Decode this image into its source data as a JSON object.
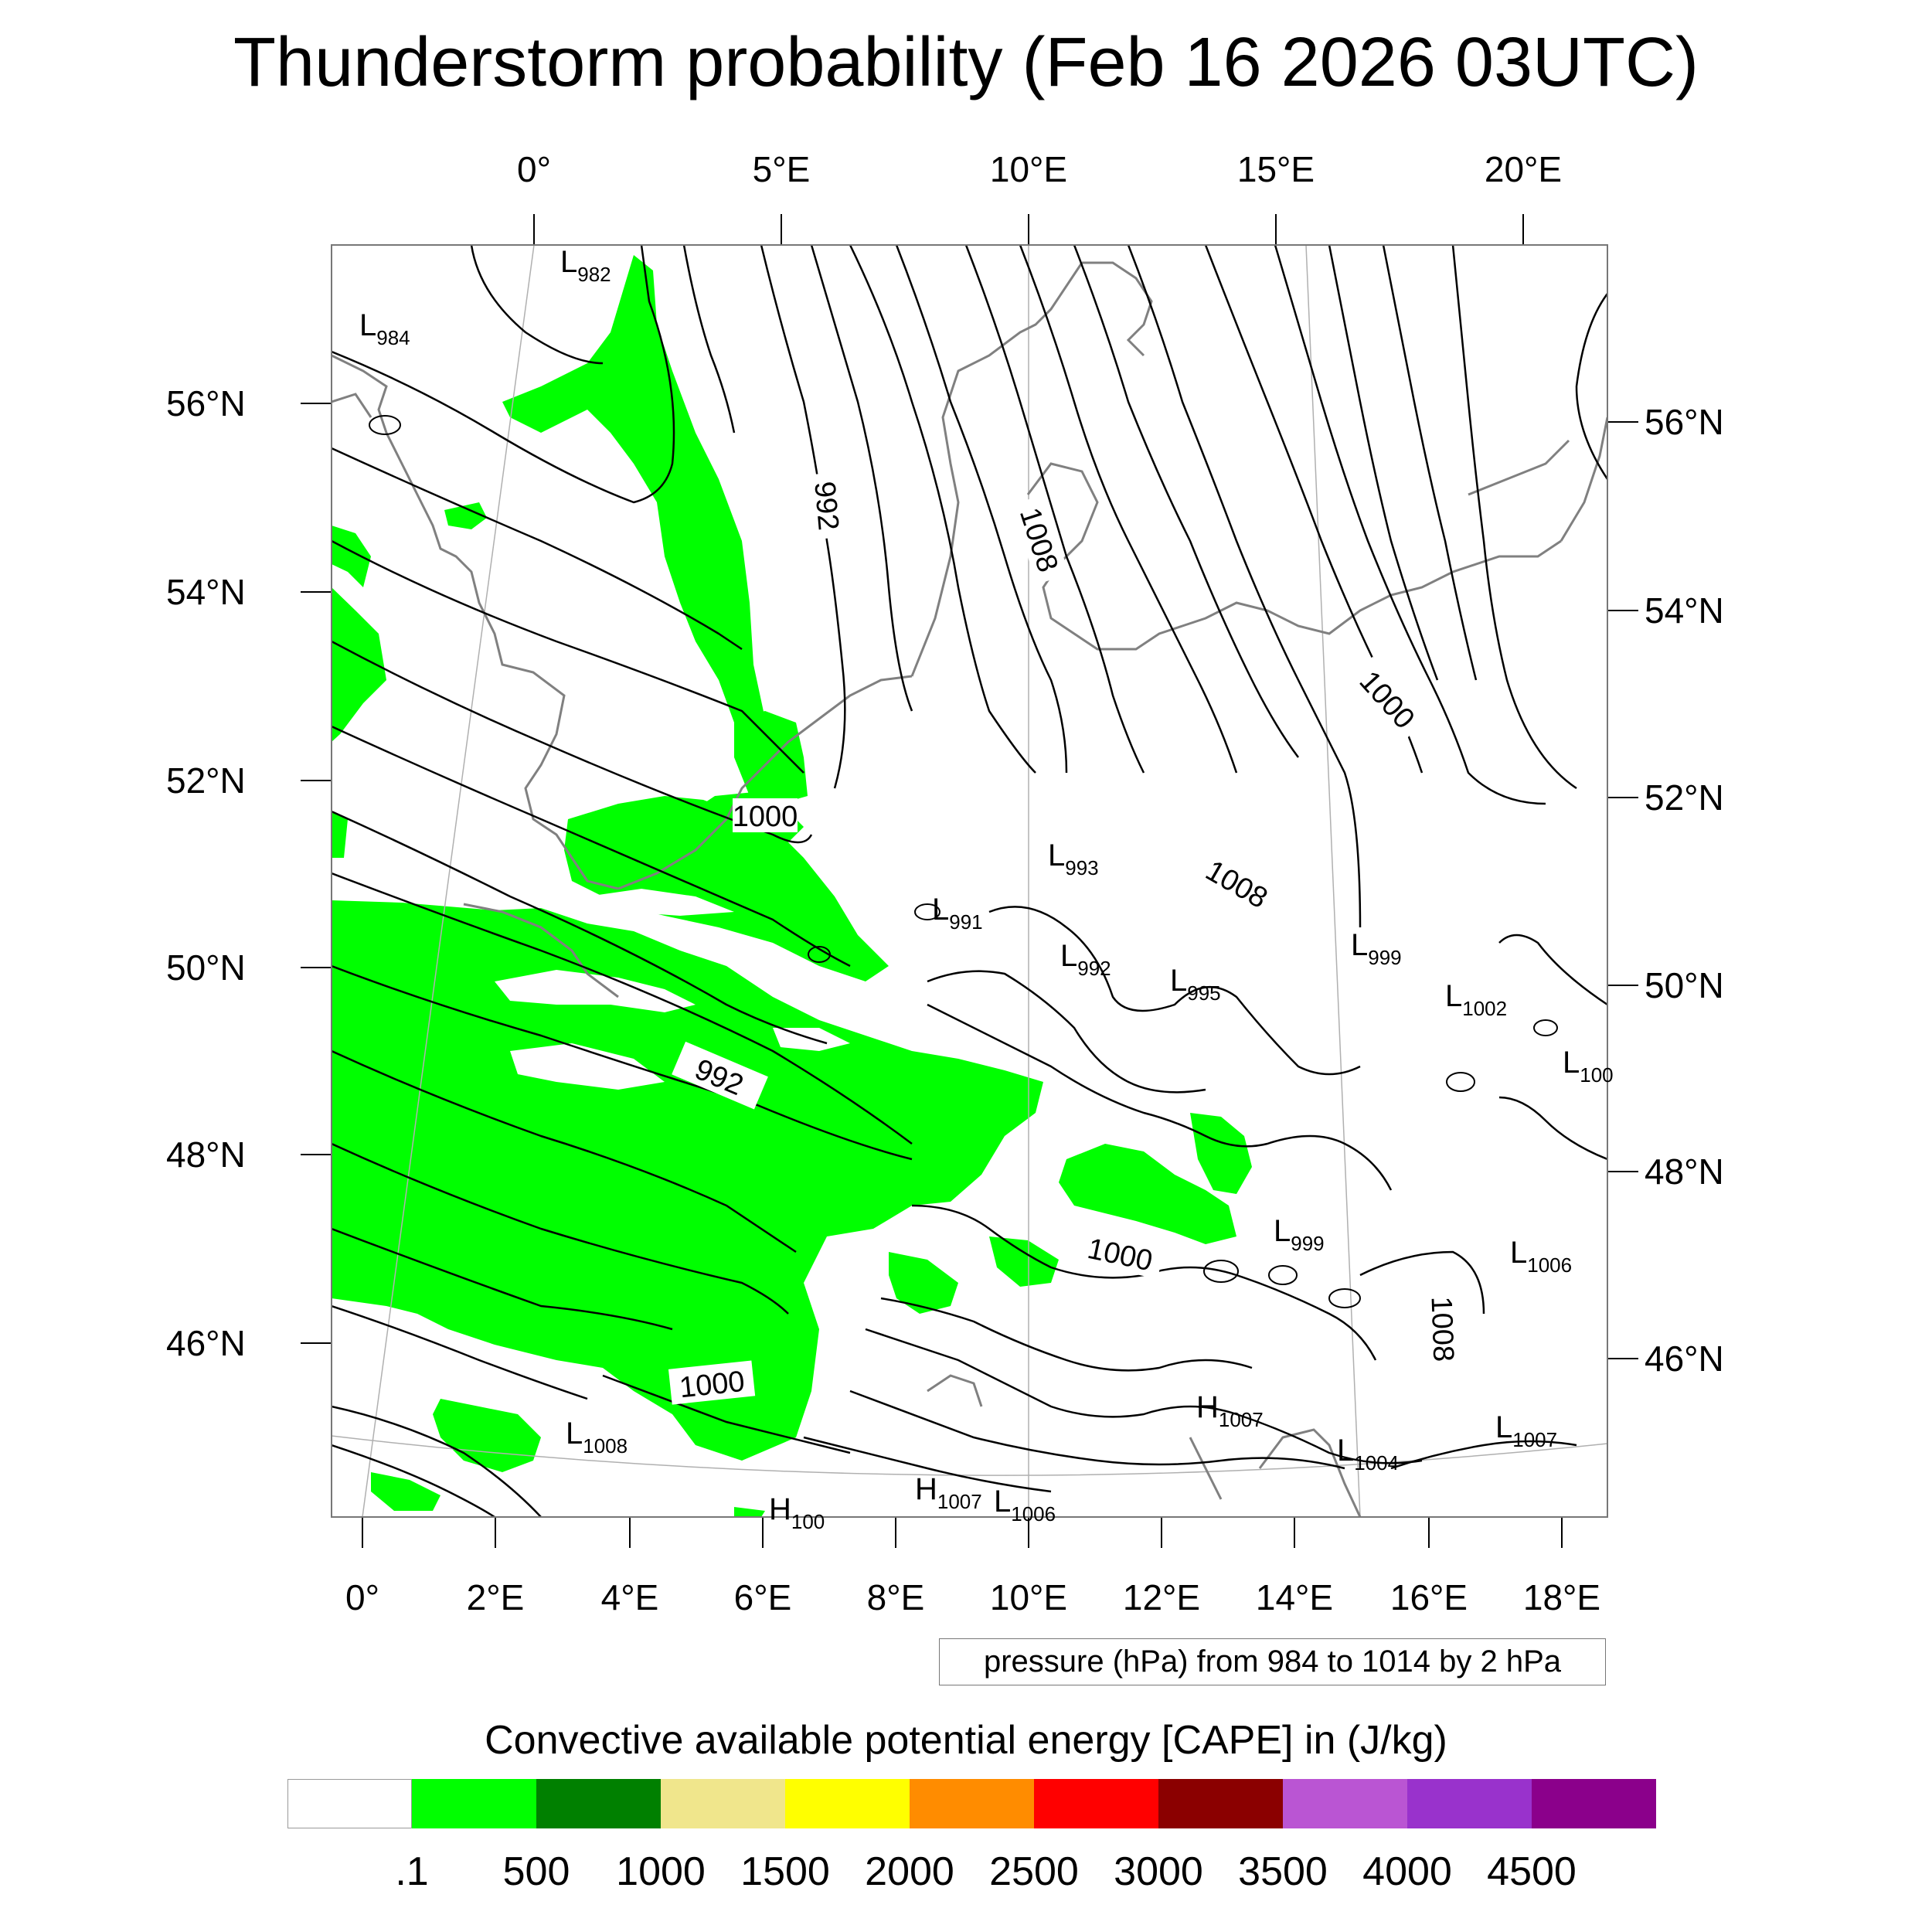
{
  "title": "Thunderstorm probability (Feb 16 2026 03UTC)",
  "top_ticks": [
    "0°",
    "5°E",
    "10°E",
    "15°E",
    "20°E"
  ],
  "bottom_ticks": [
    "0°",
    "2°E",
    "4°E",
    "6°E",
    "8°E",
    "10°E",
    "12°E",
    "14°E",
    "16°E",
    "18°E"
  ],
  "left_ticks": [
    "56°N",
    "54°N",
    "52°N",
    "50°N",
    "48°N",
    "46°N"
  ],
  "right_ticks": [
    "56°N",
    "54°N",
    "52°N",
    "50°N",
    "48°N",
    "46°N"
  ],
  "contour_note": "pressure (hPa) from 984 to 1014 by 2 hPa",
  "colorbar": {
    "title": "Convective available potential energy [CAPE] in (J/kg)",
    "colors": [
      "#ffffff",
      "#00ff00",
      "#008000",
      "#f0e68c",
      "#ffff00",
      "#ff8c00",
      "#ff0000",
      "#8b0000",
      "#ba55d3",
      "#9932cc",
      "#8b008b"
    ],
    "labels": [
      ".1",
      "500",
      "1000",
      "1500",
      "2000",
      "2500",
      "3000",
      "3500",
      "4000",
      "4500"
    ]
  },
  "colors": {
    "cape_fill": "#00ff00",
    "isobar": "#000000",
    "coastline": "#808080"
  },
  "isobar_labels": [
    "992",
    "1000",
    "1008",
    "992",
    "1000",
    "1008",
    "1000",
    "1000",
    "1008"
  ],
  "pressure_centers": [
    {
      "type": "L",
      "value": "982"
    },
    {
      "type": "L",
      "value": "984"
    },
    {
      "type": "L",
      "value": "993"
    },
    {
      "type": "L",
      "value": "991"
    },
    {
      "type": "L",
      "value": "992"
    },
    {
      "type": "L",
      "value": "995"
    },
    {
      "type": "L",
      "value": "999"
    },
    {
      "type": "L",
      "value": "1002"
    },
    {
      "type": "L",
      "value": "100"
    },
    {
      "type": "L",
      "value": "999"
    },
    {
      "type": "L",
      "value": "1006"
    },
    {
      "type": "H",
      "value": "1007"
    },
    {
      "type": "L",
      "value": "1004"
    },
    {
      "type": "L",
      "value": "1007"
    },
    {
      "type": "L",
      "value": "1008"
    },
    {
      "type": "H",
      "value": "1007"
    },
    {
      "type": "L",
      "value": "1006"
    },
    {
      "type": "H",
      "value": "100"
    }
  ]
}
